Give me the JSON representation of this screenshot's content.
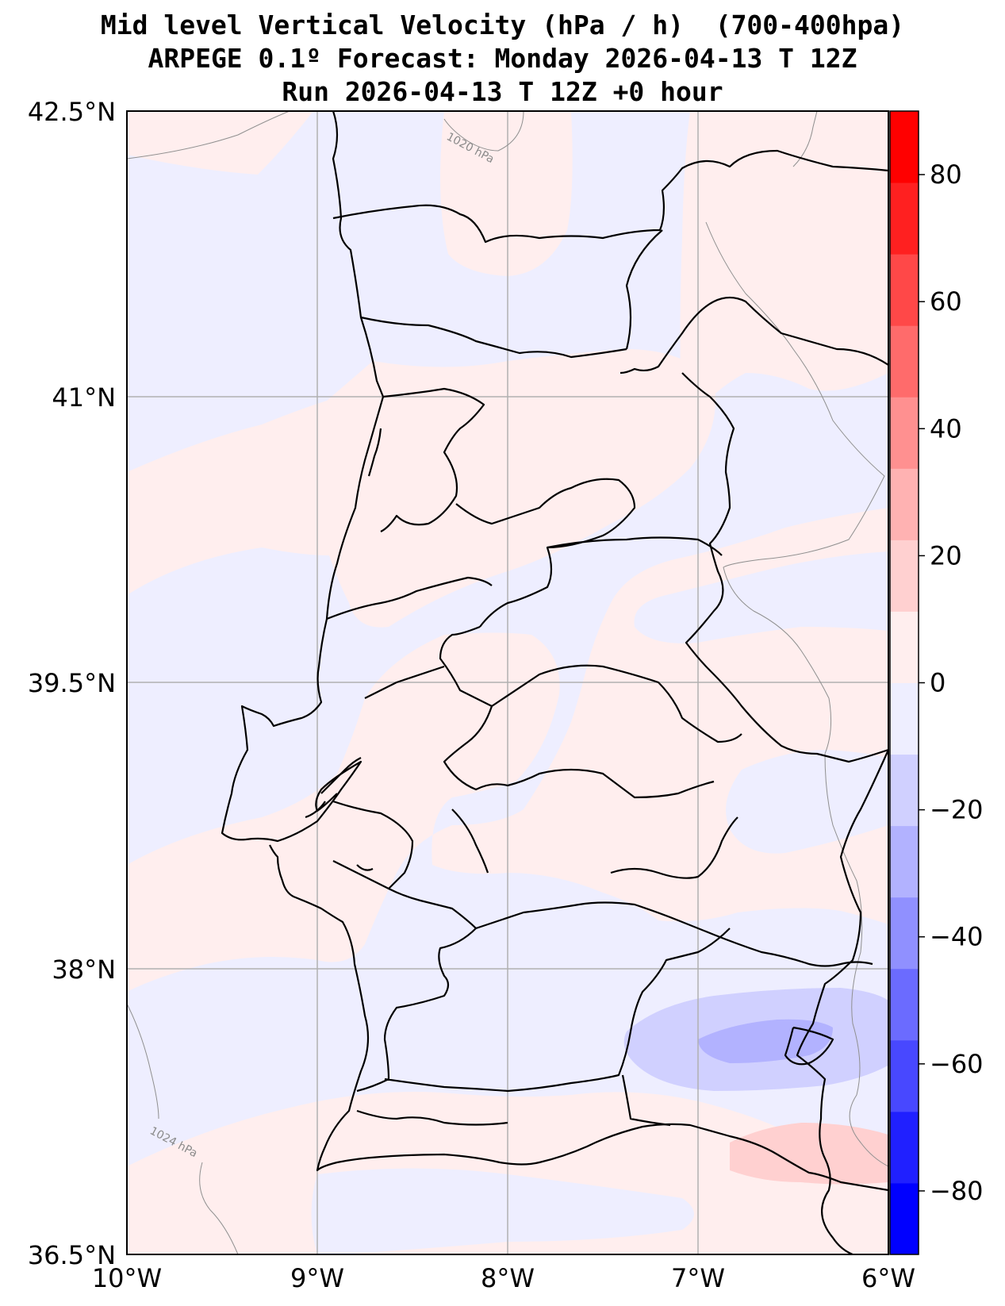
{
  "titles": {
    "line1": "Mid level Vertical Velocity (hPa / h)  (700-400hpa)",
    "line2": "ARPEGE 0.1º Forecast: Monday 2026-04-13 T 12Z",
    "line3": "Run 2026-04-13 T 12Z +0 hour"
  },
  "map": {
    "lon_range": [
      -10,
      -6
    ],
    "lat_range": [
      36.5,
      42.5
    ],
    "lon_ticks": [
      "10°W",
      "9°W",
      "8°W",
      "7°W",
      "6°W"
    ],
    "lat_ticks": [
      "42.5°N",
      "41°N",
      "39.5°N",
      "38°N",
      "36.5°N"
    ],
    "grid": true,
    "isobar_labels": [
      "1020 hPa",
      "1024 hPa"
    ]
  },
  "colorbar": {
    "ticks": [
      "80",
      "60",
      "40",
      "20",
      "0",
      "−20",
      "−40",
      "−60",
      "−80"
    ],
    "range": [
      -90,
      90
    ],
    "colors": [
      "#0000ff",
      "#2020ff",
      "#4848ff",
      "#6b6bff",
      "#9090ff",
      "#b2b2ff",
      "#d0d0ff",
      "#eeeeff",
      "#ffeeee",
      "#ffd0d0",
      "#ffb2b2",
      "#ff9090",
      "#ff6b6b",
      "#ff4848",
      "#ff2020",
      "#ff0000"
    ]
  },
  "colors": {
    "weak_negative": "#eeeeff",
    "weak_positive": "#ffeeee",
    "moderate_negative": "#d0d0ff",
    "strong_negative": "#b2b2ff",
    "moderate_positive": "#ffd0d0"
  }
}
